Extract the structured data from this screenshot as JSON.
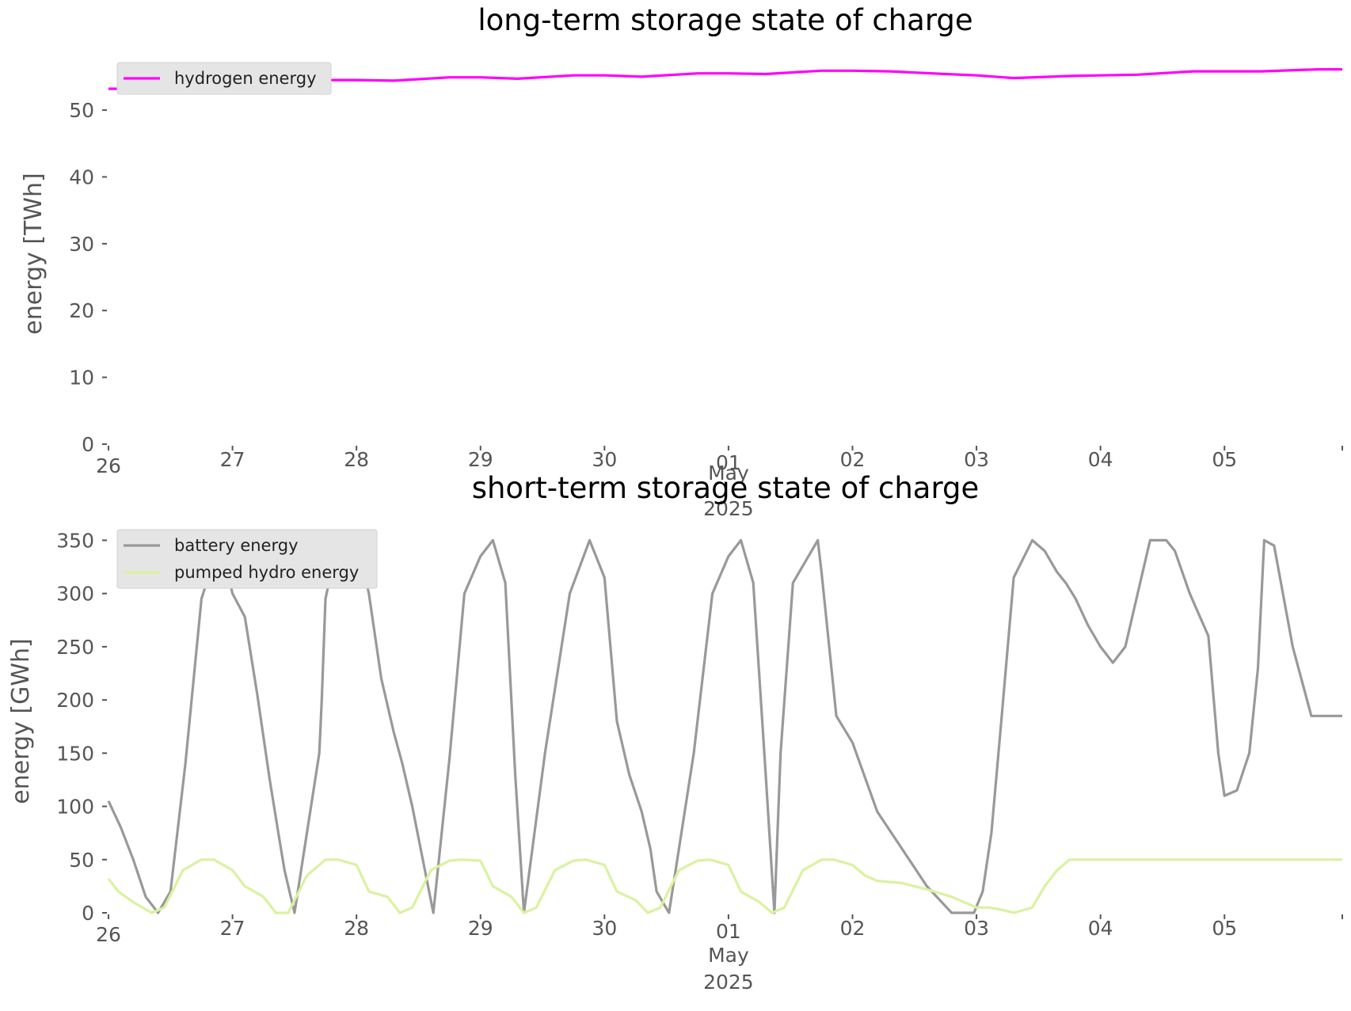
{
  "chart_data": [
    {
      "type": "line",
      "title": "long-term storage state of charge",
      "ylabel": "energy [TWh]",
      "xlabel": "",
      "ylim": [
        0,
        57
      ],
      "yticks": [
        0,
        10,
        20,
        30,
        40,
        50
      ],
      "x_range_days": [
        0,
        9.95
      ],
      "xtick_labels": [
        "26",
        "27",
        "28",
        "29",
        "30",
        "01",
        "02",
        "03",
        "04",
        "05"
      ],
      "xtick_sublabels": {
        "month": "May",
        "year": "2025"
      },
      "legend": "top-left",
      "grid": false,
      "series": [
        {
          "name": "hydrogen energy",
          "color": "#ff00ff",
          "x": [
            0,
            0.25,
            0.5,
            0.75,
            1,
            1.25,
            1.5,
            1.75,
            2,
            2.3,
            2.75,
            3,
            3.3,
            3.75,
            4,
            4.3,
            4.75,
            5,
            5.3,
            5.75,
            6,
            6.3,
            6.75,
            7,
            7.3,
            7.75,
            8,
            8.3,
            8.75,
            9,
            9.3,
            9.75,
            9.95
          ],
          "values": [
            53.2,
            53.2,
            53.5,
            53.9,
            54.0,
            54.0,
            54.3,
            54.5,
            54.5,
            54.4,
            54.9,
            54.9,
            54.7,
            55.2,
            55.2,
            55.0,
            55.5,
            55.5,
            55.4,
            55.9,
            55.9,
            55.8,
            55.4,
            55.2,
            54.8,
            55.1,
            55.2,
            55.3,
            55.8,
            55.8,
            55.8,
            56.1,
            56.1
          ]
        }
      ]
    },
    {
      "type": "line",
      "title": "short-term storage state of charge",
      "ylabel": "energy [GWh]",
      "xlabel": "",
      "ylim": [
        0,
        360
      ],
      "yticks": [
        0,
        50,
        100,
        150,
        200,
        250,
        300,
        350
      ],
      "x_range_days": [
        0,
        9.95
      ],
      "xtick_labels": [
        "26",
        "27",
        "28",
        "29",
        "30",
        "01",
        "02",
        "03",
        "04",
        "05"
      ],
      "xtick_sublabels": {
        "month": "May",
        "year": "2025"
      },
      "legend": "top-left",
      "grid": false,
      "series": [
        {
          "name": "battery energy",
          "color": "#999999",
          "x": [
            0,
            0.1,
            0.2,
            0.3,
            0.4,
            0.5,
            0.62,
            0.75,
            0.9,
            1.0,
            1.1,
            1.2,
            1.3,
            1.37,
            1.42,
            1.5,
            1.7,
            1.72,
            1.75,
            1.85,
            2.0,
            2.1,
            2.2,
            2.3,
            2.37,
            2.45,
            2.62,
            2.75,
            2.87,
            3.0,
            3.1,
            3.2,
            3.28,
            3.35,
            3.52,
            3.72,
            3.88,
            4.0,
            4.1,
            4.2,
            4.3,
            4.37,
            4.42,
            4.52,
            4.72,
            4.87,
            5.0,
            5.1,
            5.2,
            5.3,
            5.37,
            5.42,
            5.52,
            5.72,
            5.75,
            5.87,
            6.0,
            6.2,
            6.4,
            6.6,
            6.8,
            6.9,
            6.98,
            7.05,
            7.12,
            7.2,
            7.3,
            7.45,
            7.55,
            7.65,
            7.72,
            7.8,
            7.9,
            8.0,
            8.1,
            8.2,
            8.3,
            8.4,
            8.48,
            8.53,
            8.6,
            8.72,
            8.87,
            8.95,
            9.0,
            9.1,
            9.2,
            9.27,
            9.32,
            9.4,
            9.55,
            9.7,
            9.75,
            9.82,
            9.9,
            9.95
          ],
          "values": [
            105,
            80,
            50,
            15,
            0,
            20,
            140,
            295,
            350,
            300,
            278,
            205,
            125,
            75,
            40,
            0,
            150,
            200,
            295,
            350,
            350,
            300,
            220,
            170,
            140,
            100,
            0,
            145,
            300,
            335,
            350,
            310,
            130,
            0,
            150,
            300,
            350,
            315,
            180,
            130,
            95,
            60,
            20,
            0,
            150,
            300,
            335,
            350,
            310,
            130,
            0,
            150,
            310,
            350,
            320,
            185,
            160,
            95,
            60,
            25,
            0,
            0,
            0,
            20,
            75,
            180,
            315,
            350,
            340,
            320,
            310,
            295,
            270,
            250,
            235,
            250,
            300,
            350,
            350,
            350,
            340,
            300,
            260,
            150,
            110,
            115,
            150,
            230,
            350,
            345,
            250,
            185,
            185,
            185,
            185,
            185
          ]
        },
        {
          "name": "pumped hydro energy",
          "color": "#d9f2a0",
          "x": [
            0,
            0.08,
            0.2,
            0.35,
            0.45,
            0.6,
            0.75,
            0.85,
            1.0,
            1.1,
            1.25,
            1.35,
            1.45,
            1.6,
            1.75,
            1.85,
            2.0,
            2.1,
            2.25,
            2.35,
            2.45,
            2.6,
            2.75,
            2.85,
            3.0,
            3.1,
            3.25,
            3.35,
            3.45,
            3.6,
            3.75,
            3.85,
            4.0,
            4.1,
            4.25,
            4.35,
            4.45,
            4.6,
            4.75,
            4.85,
            5.0,
            5.1,
            5.25,
            5.35,
            5.45,
            5.6,
            5.75,
            5.85,
            6.0,
            6.1,
            6.2,
            6.4,
            6.6,
            6.8,
            7.0,
            7.1,
            7.2,
            7.3,
            7.45,
            7.55,
            7.65,
            7.75,
            7.9,
            8.0,
            8.2,
            8.4,
            8.6,
            8.8,
            9.0,
            9.2,
            9.4,
            9.6,
            9.8,
            9.95
          ],
          "values": [
            32,
            20,
            10,
            0,
            5,
            40,
            50,
            50,
            40,
            25,
            15,
            0,
            0,
            35,
            50,
            50,
            45,
            20,
            15,
            0,
            5,
            40,
            49,
            50,
            49,
            25,
            15,
            0,
            5,
            40,
            49,
            50,
            45,
            20,
            12,
            0,
            5,
            40,
            49,
            50,
            45,
            20,
            10,
            0,
            5,
            40,
            50,
            50,
            45,
            35,
            30,
            28,
            22,
            15,
            5,
            5,
            3,
            0,
            5,
            25,
            40,
            50,
            50,
            50,
            50,
            50,
            50,
            50,
            50,
            50,
            50,
            50,
            50,
            50
          ]
        }
      ]
    }
  ]
}
